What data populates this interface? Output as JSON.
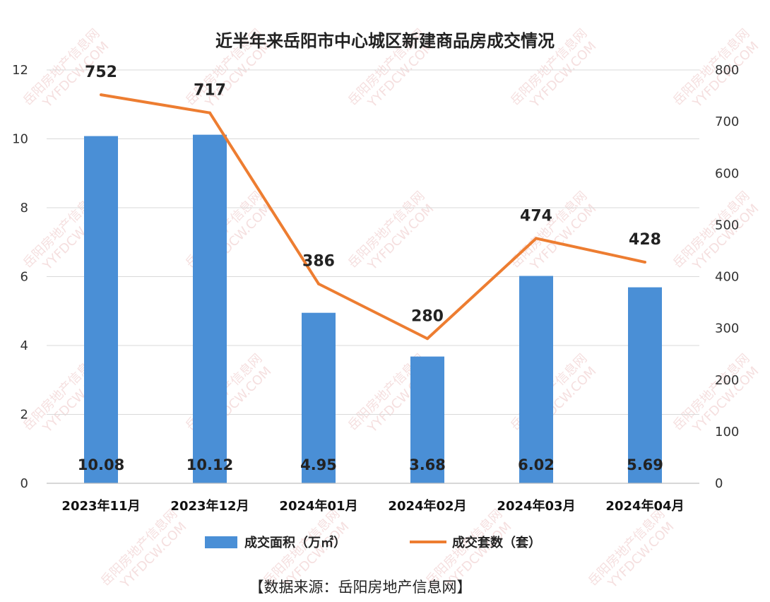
{
  "chart_data": {
    "type": "bar",
    "title": "近半年来岳阳市中心城区新建商品房成交情况",
    "categories": [
      "2023年11月",
      "2023年12月",
      "2024年01月",
      "2024年02月",
      "2024年03月",
      "2024年04月"
    ],
    "series": [
      {
        "name": "成交面积（万㎡）",
        "type": "bar",
        "axis": "left",
        "values": [
          10.08,
          10.12,
          4.95,
          3.68,
          6.02,
          5.69
        ],
        "labels": [
          "10.08",
          "10.12",
          "4.95",
          "3.68",
          "6.02",
          "5.69"
        ],
        "color": "#4a8fd6"
      },
      {
        "name": "成交套数（套）",
        "type": "line",
        "axis": "right",
        "values": [
          752,
          717,
          386,
          280,
          474,
          428
        ],
        "labels": [
          "752",
          "717",
          "386",
          "280",
          "474",
          "428"
        ],
        "color": "#ed7d31"
      }
    ],
    "y_left": {
      "ylim": [
        0,
        12
      ],
      "ticks": [
        "0",
        "2",
        "4",
        "6",
        "8",
        "10",
        "12"
      ]
    },
    "y_right": {
      "ylim": [
        0,
        800
      ],
      "ticks": [
        "0",
        "100",
        "200",
        "300",
        "400",
        "500",
        "600",
        "700",
        "800"
      ]
    },
    "grid": true,
    "legend_position": "bottom"
  },
  "watermark": {
    "text": "岳阳房地产信息网",
    "subtext": "YYFDCW.COM"
  },
  "source_note": "【数据来源：岳阳房地产信息网】"
}
